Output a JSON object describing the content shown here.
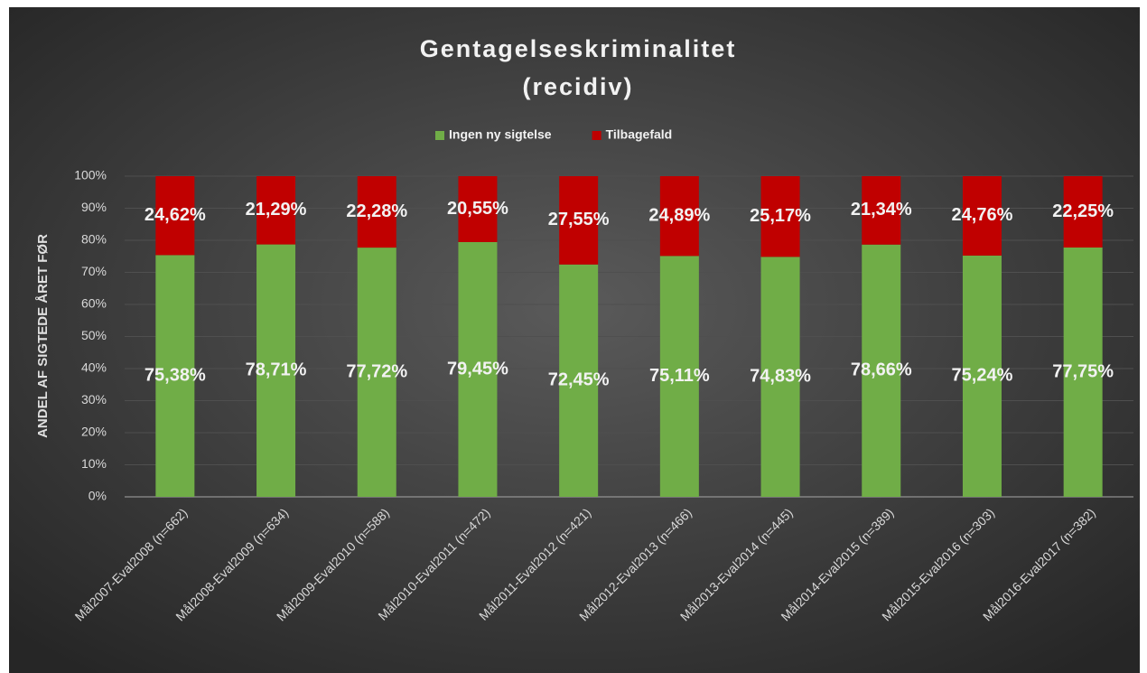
{
  "chart_data": {
    "type": "bar",
    "stacked": true,
    "title": [
      "Gentagelseskriminalitet",
      "(recidiv)"
    ],
    "ylabel": "ANDEL AF SIGTEDE ÅRET FØR",
    "categories": [
      "Mål2007-Eval2008 (n=662)",
      "Mål2008-Eval2009 (n=634)",
      "Mål2009-Eval2010 (n=588)",
      "Mål2010-Eval2011 (n=472)",
      "Mål2011-Eval2012 (n=421)",
      "Mål2012-Eval2013 (n=466)",
      "Mål2013-Eval2014 (n=445)",
      "Mål2014-Eval2015 (n=389)",
      "Mål2015-Eval2016 (n=303)",
      "Mål2016-Eval2017 (n=382)"
    ],
    "series": [
      {
        "name": "Ingen ny sigtelse",
        "color": "#70ad47",
        "values": [
          75.38,
          78.71,
          77.72,
          79.45,
          72.45,
          75.11,
          74.83,
          78.66,
          75.24,
          77.75
        ],
        "value_labels": [
          "75,38%",
          "78,71%",
          "77,72%",
          "79,45%",
          "72,45%",
          "75,11%",
          "74,83%",
          "78,66%",
          "75,24%",
          "77,75%"
        ]
      },
      {
        "name": "Tilbagefald",
        "color": "#c00000",
        "values": [
          24.62,
          21.29,
          22.28,
          20.55,
          27.55,
          24.89,
          25.17,
          21.34,
          24.76,
          22.25
        ],
        "value_labels": [
          "24,62%",
          "21,29%",
          "22,28%",
          "20,55%",
          "27,55%",
          "24,89%",
          "25,17%",
          "21,34%",
          "24,76%",
          "22,25%"
        ]
      }
    ],
    "ylim": [
      0,
      100
    ],
    "yticks": [
      {
        "value": 0,
        "label": "0%"
      },
      {
        "value": 10,
        "label": "10%"
      },
      {
        "value": 20,
        "label": "20%"
      },
      {
        "value": 30,
        "label": "30%"
      },
      {
        "value": 40,
        "label": "40%"
      },
      {
        "value": 50,
        "label": "50%"
      },
      {
        "value": 60,
        "label": "60%"
      },
      {
        "value": 70,
        "label": "70%"
      },
      {
        "value": 80,
        "label": "80%"
      },
      {
        "value": 90,
        "label": "90%"
      },
      {
        "value": 100,
        "label": "100%"
      }
    ],
    "grid": true,
    "legend": "top"
  }
}
